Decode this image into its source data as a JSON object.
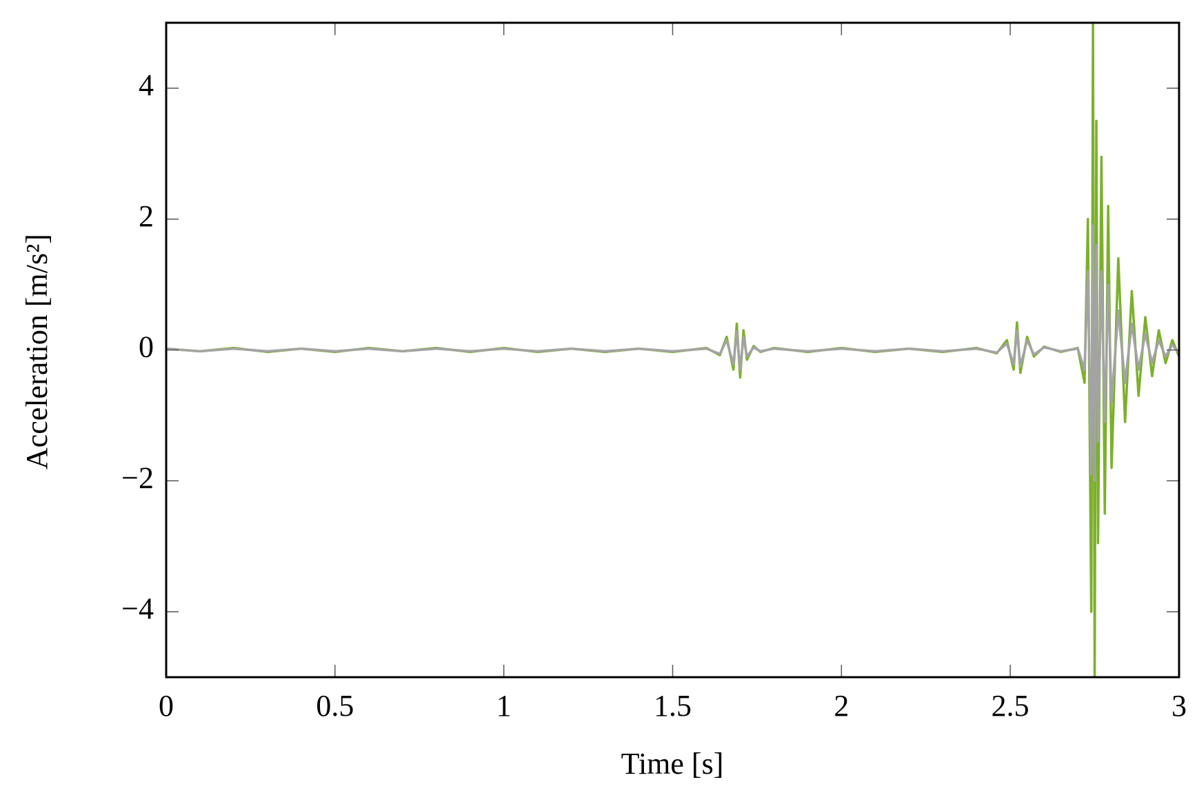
{
  "chart_data": {
    "type": "line",
    "xlabel": "Time [s]",
    "ylabel": "Acceleration [m/s²]",
    "x": [
      0,
      0.1,
      0.2,
      0.3,
      0.4,
      0.5,
      0.6,
      0.7,
      0.8,
      0.9,
      1.0,
      1.1,
      1.2,
      1.3,
      1.4,
      1.5,
      1.6,
      1.64,
      1.66,
      1.68,
      1.69,
      1.7,
      1.71,
      1.72,
      1.74,
      1.76,
      1.8,
      1.9,
      2.0,
      2.1,
      2.2,
      2.3,
      2.4,
      2.46,
      2.49,
      2.51,
      2.52,
      2.53,
      2.55,
      2.57,
      2.6,
      2.65,
      2.7,
      2.72,
      2.73,
      2.74,
      2.745,
      2.75,
      2.755,
      2.76,
      2.77,
      2.78,
      2.79,
      2.8,
      2.82,
      2.84,
      2.86,
      2.88,
      2.9,
      2.92,
      2.94,
      2.96,
      2.98,
      3.0
    ],
    "series": [
      {
        "color": "#7cb02c",
        "values": [
          0.02,
          -0.02,
          0.03,
          -0.03,
          0.02,
          -0.03,
          0.03,
          -0.02,
          0.03,
          -0.03,
          0.03,
          -0.03,
          0.02,
          -0.03,
          0.02,
          -0.03,
          0.03,
          -0.08,
          0.2,
          -0.3,
          0.4,
          -0.42,
          0.3,
          -0.15,
          0.06,
          -0.03,
          0.03,
          -0.03,
          0.03,
          -0.03,
          0.02,
          -0.03,
          0.03,
          -0.05,
          0.15,
          -0.3,
          0.42,
          -0.35,
          0.2,
          -0.1,
          0.05,
          -0.03,
          0.03,
          -0.5,
          2,
          -4,
          5,
          -5,
          3.5,
          -2.95,
          2.95,
          -2.5,
          2.2,
          -1.8,
          1.4,
          -1.1,
          0.9,
          -0.7,
          0.5,
          -0.4,
          0.3,
          -0.2,
          0.15,
          -0.1
        ]
      },
      {
        "color": "#a3a3a3",
        "values": [
          0.02,
          -0.02,
          0.02,
          -0.02,
          0.02,
          -0.02,
          0.02,
          -0.02,
          0.02,
          -0.02,
          0.02,
          -0.02,
          0.02,
          -0.02,
          0.02,
          -0.02,
          0.02,
          -0.06,
          0.15,
          -0.22,
          0.28,
          -0.3,
          0.2,
          -0.1,
          0.04,
          -0.02,
          0.02,
          -0.02,
          0.02,
          -0.02,
          0.02,
          -0.02,
          0.02,
          -0.04,
          0.1,
          -0.22,
          0.3,
          -0.25,
          0.15,
          -0.07,
          0.04,
          -0.02,
          0.02,
          -0.3,
          1.2,
          -1.9,
          1.9,
          -2,
          1.6,
          -1.4,
          1.2,
          -1.1,
          1,
          -0.8,
          0.6,
          -0.5,
          0.4,
          -0.3,
          0.25,
          -0.2,
          0.15,
          -0.1,
          0.08,
          -0.05
        ]
      }
    ],
    "xlim": [
      0,
      3
    ],
    "xticks": [
      0,
      0.5,
      1,
      1.5,
      2,
      2.5,
      3
    ],
    "ylim": [
      -5,
      5
    ],
    "yticks": [
      {
        "value": -4,
        "label": "−4"
      },
      {
        "value": -2,
        "label": "−2"
      },
      0,
      2,
      4
    ]
  }
}
